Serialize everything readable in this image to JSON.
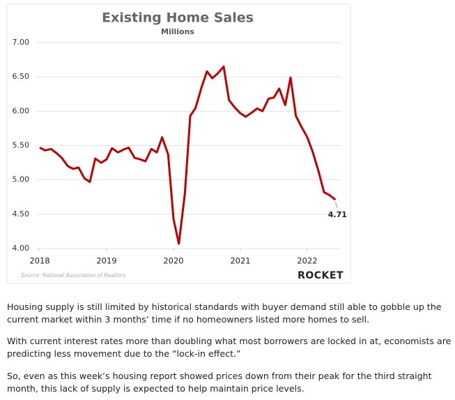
{
  "chart_data": {
    "type": "line",
    "title": "Existing Home Sales",
    "subtitle": "Millions",
    "source": "Source: National Association of Realtors",
    "brand": "ROCKET",
    "color": "#c00000",
    "x": [
      2018.0,
      2018.08,
      2018.17,
      2018.25,
      2018.33,
      2018.42,
      2018.5,
      2018.58,
      2018.67,
      2018.75,
      2018.83,
      2018.92,
      2019.0,
      2019.08,
      2019.17,
      2019.25,
      2019.33,
      2019.42,
      2019.5,
      2019.58,
      2019.67,
      2019.75,
      2019.83,
      2019.92,
      2020.0,
      2020.08,
      2020.17,
      2020.25,
      2020.33,
      2020.42,
      2020.5,
      2020.58,
      2020.67,
      2020.75,
      2020.83,
      2020.92,
      2021.0,
      2021.08,
      2021.17,
      2021.25,
      2021.33,
      2021.42,
      2021.5,
      2021.58,
      2021.67,
      2021.75,
      2021.83,
      2021.92,
      2022.0,
      2022.08,
      2022.17,
      2022.25,
      2022.33,
      2022.42
    ],
    "values": [
      5.47,
      5.43,
      5.45,
      5.39,
      5.32,
      5.2,
      5.16,
      5.18,
      5.02,
      4.97,
      5.31,
      5.25,
      5.3,
      5.46,
      5.4,
      5.44,
      5.47,
      5.32,
      5.3,
      5.27,
      5.45,
      5.4,
      5.62,
      5.37,
      4.43,
      4.07,
      4.8,
      5.93,
      6.05,
      6.35,
      6.58,
      6.48,
      6.56,
      6.65,
      6.16,
      6.05,
      5.97,
      5.92,
      5.98,
      6.04,
      6.0,
      6.18,
      6.2,
      6.33,
      6.09,
      6.49,
      5.93,
      5.76,
      5.62,
      5.41,
      5.12,
      4.82,
      4.78,
      4.71
    ],
    "xlim": [
      2018,
      2022.5
    ],
    "xticks": [
      2018,
      2019,
      2020,
      2021,
      2022
    ],
    "ylim": [
      4,
      7
    ],
    "yticks": [
      {
        "value": 4,
        "label": "4.00"
      },
      {
        "value": 4.5,
        "label": "4.50"
      },
      {
        "value": 5,
        "label": "5.00"
      },
      {
        "value": 5.5,
        "label": "5.50"
      },
      {
        "value": 6,
        "label": "6.00"
      },
      {
        "value": 6.5,
        "label": "6.50"
      },
      {
        "value": 7,
        "label": "7.00"
      }
    ],
    "grid": true
  },
  "paragraphs": [
    "Housing supply is still limited by historical standards with buyer demand still able to gobble up the current market within 3 months’ time if no homeowners listed more homes to sell.",
    "With current interest rates more than doubling what most borrowers are locked in at, economists are predicting less movement due to the “lock-in effect.”",
    "So, even as this week’s housing report showed prices down from their peak for the third straight month, this lack of supply is expected to help maintain price levels."
  ]
}
